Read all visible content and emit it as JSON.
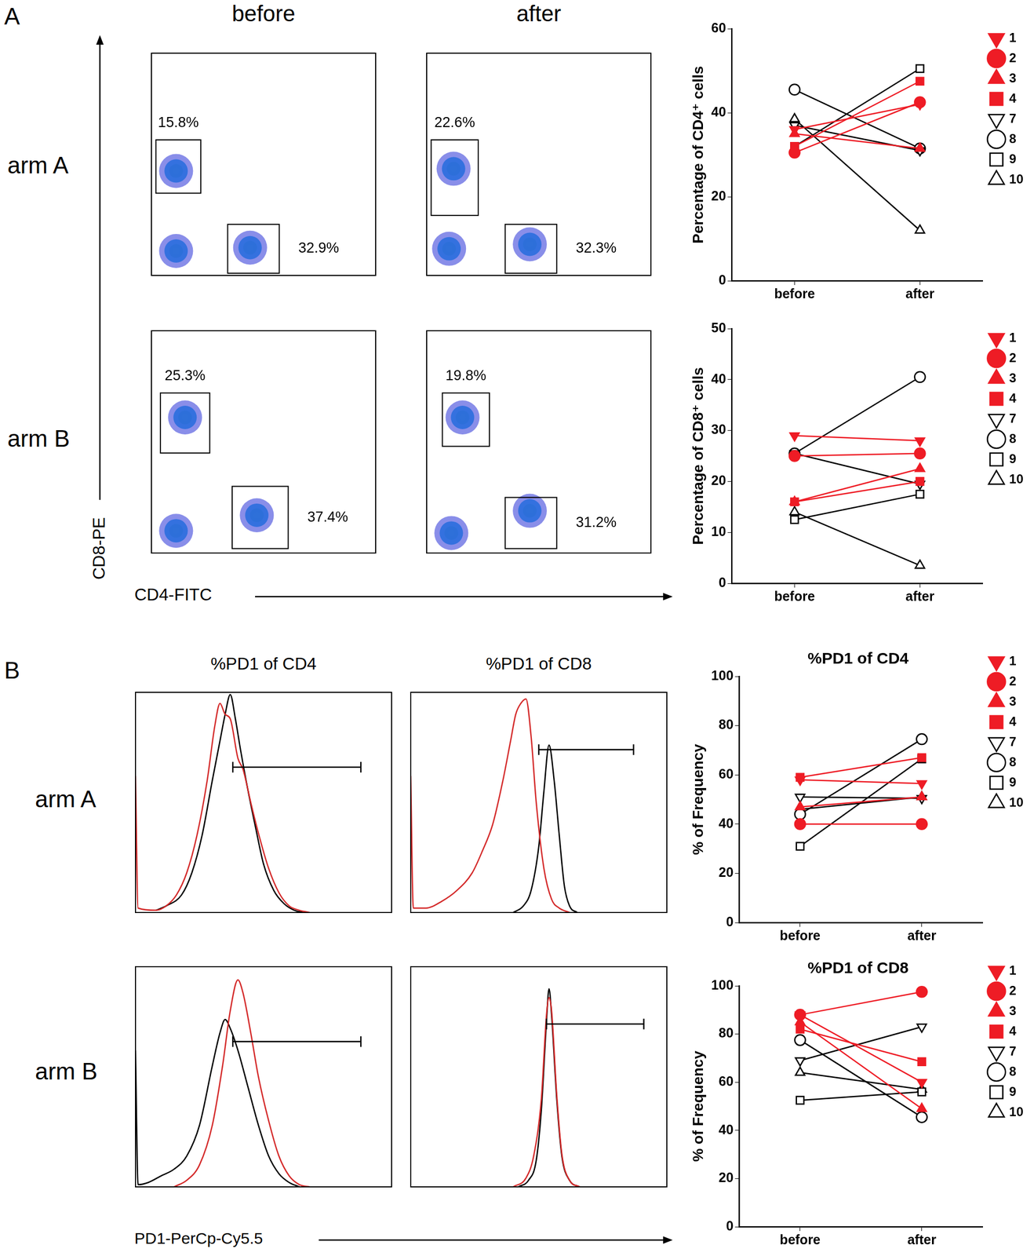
{
  "figure": {
    "panel_labels": [
      "A",
      "B"
    ],
    "rows_A": [
      "arm A",
      "arm B"
    ],
    "rows_B": [
      "arm A",
      "arm B"
    ],
    "x_label_A": "CD4-FITC",
    "y_label_A": "CD8-PE",
    "x_label_B": "PD1-PerCp-Cy5.5"
  },
  "chart_data": [
    {
      "type": "scatter",
      "title": "before",
      "xlim": [
        0,
        100
      ],
      "ylim": [
        0,
        100
      ],
      "tick_labels": false,
      "x": [
        11,
        44,
        11
      ],
      "values": [
        11,
        12.5,
        47
      ],
      "gates": [
        {
          "x": [
            2,
            22
          ],
          "y": [
            37,
            61
          ],
          "label": "15.8%"
        },
        {
          "x": [
            34,
            57
          ],
          "y": [
            1,
            23
          ],
          "label": "32.9%"
        }
      ]
    },
    {
      "type": "scatter",
      "title": "after",
      "xlim": [
        0,
        100
      ],
      "ylim": [
        0,
        100
      ],
      "tick_labels": false,
      "x": [
        10,
        46,
        12
      ],
      "values": [
        12,
        14,
        48
      ],
      "gates": [
        {
          "x": [
            2,
            23
          ],
          "y": [
            27,
            61
          ],
          "label": "22.6%"
        },
        {
          "x": [
            35,
            58
          ],
          "y": [
            1,
            23
          ],
          "label": "32.3%"
        }
      ]
    },
    {
      "type": "scatter",
      "xlim": [
        0,
        100
      ],
      "ylim": [
        0,
        100
      ],
      "tick_labels": false,
      "x": [
        11,
        47,
        15
      ],
      "values": [
        10,
        17,
        61
      ],
      "gates": [
        {
          "x": [
            4,
            26
          ],
          "y": [
            45,
            72
          ],
          "label": "25.3%"
        },
        {
          "x": [
            36,
            61
          ],
          "y": [
            2,
            30
          ],
          "label": "37.4%"
        }
      ]
    },
    {
      "type": "scatter",
      "xlim": [
        0,
        100
      ],
      "ylim": [
        0,
        100
      ],
      "tick_labels": false,
      "x": [
        11,
        46,
        16
      ],
      "values": [
        9,
        19,
        61
      ],
      "gates": [
        {
          "x": [
            7,
            28
          ],
          "y": [
            48,
            72
          ],
          "label": "19.8%"
        },
        {
          "x": [
            35,
            58
          ],
          "y": [
            2,
            25
          ],
          "label": "31.2%"
        }
      ]
    },
    {
      "type": "line",
      "y_label": "Percentage of CD4⁺ cells",
      "categories": [
        "before",
        "after"
      ],
      "ylim": [
        0,
        60
      ],
      "yticks": [
        0,
        20,
        40,
        60
      ],
      "grid": false,
      "legend": "right",
      "series": [
        {
          "name": "1",
          "color": "#ee1c25",
          "marker": "filled_triangle_down",
          "values": [
            36,
            42
          ]
        },
        {
          "name": "2",
          "color": "#ee1c25",
          "marker": "filled_circle",
          "values": [
            30.5,
            42.5
          ]
        },
        {
          "name": "3",
          "color": "#ee1c25",
          "marker": "filled_triangle",
          "values": [
            35,
            31.5
          ]
        },
        {
          "name": "4",
          "color": "#ee1c25",
          "marker": "filled_square",
          "values": [
            32,
            47.5
          ]
        },
        {
          "name": "7",
          "color": "#000000",
          "marker": "open_triangle_down",
          "values": [
            37,
            31
          ]
        },
        {
          "name": "8",
          "color": "#000000",
          "marker": "open_circle",
          "values": [
            45.5,
            31.5
          ]
        },
        {
          "name": "9",
          "color": "#000000",
          "marker": "open_square",
          "values": [
            32,
            50.5
          ]
        },
        {
          "name": "10",
          "color": "#000000",
          "marker": "open_triangle",
          "values": [
            38.5,
            12
          ]
        }
      ]
    },
    {
      "type": "line",
      "y_label": "Percentage of CD8⁺ cells",
      "categories": [
        "before",
        "after"
      ],
      "ylim": [
        0,
        50
      ],
      "yticks": [
        0,
        10,
        20,
        30,
        40,
        50
      ],
      "grid": false,
      "legend": "right",
      "series": [
        {
          "name": "1",
          "color": "#ee1c25",
          "marker": "filled_triangle_down",
          "values": [
            29,
            28
          ]
        },
        {
          "name": "2",
          "color": "#ee1c25",
          "marker": "filled_circle",
          "values": [
            25,
            25.5
          ]
        },
        {
          "name": "3",
          "color": "#ee1c25",
          "marker": "filled_triangle",
          "values": [
            16,
            22.5
          ]
        },
        {
          "name": "4",
          "color": "#ee1c25",
          "marker": "filled_square",
          "values": [
            16,
            20
          ]
        },
        {
          "name": "7",
          "color": "#000000",
          "marker": "open_triangle_down",
          "values": [
            25.5,
            19.5
          ]
        },
        {
          "name": "8",
          "color": "#000000",
          "marker": "open_circle",
          "values": [
            25.5,
            40.5
          ]
        },
        {
          "name": "9",
          "color": "#000000",
          "marker": "open_square",
          "values": [
            12.5,
            17.5
          ]
        },
        {
          "name": "10",
          "color": "#000000",
          "marker": "open_triangle",
          "values": [
            14,
            3.5
          ]
        }
      ]
    },
    {
      "type": "line",
      "title": "%PD1 of CD4",
      "xlim": [
        0,
        100
      ],
      "ylim": [
        0,
        100
      ],
      "tick_labels": false,
      "series": [
        {
          "color": "#d42a2a",
          "x": [
            0,
            1,
            8,
            12,
            16,
            20,
            24,
            28,
            31,
            33,
            35,
            37,
            40,
            42,
            45,
            48,
            52,
            56,
            60,
            64,
            68
          ],
          "values": [
            62,
            2,
            1,
            3,
            8,
            18,
            35,
            60,
            85,
            95,
            90,
            88,
            70,
            65,
            50,
            36,
            20,
            9,
            3,
            1,
            0
          ]
        },
        {
          "color": "#000000",
          "x": [
            8,
            12,
            18,
            22,
            26,
            30,
            33,
            35,
            37,
            39,
            41,
            44,
            47,
            50,
            54,
            58,
            62,
            66
          ],
          "values": [
            1,
            3,
            8,
            18,
            35,
            60,
            78,
            90,
            99,
            88,
            74,
            55,
            38,
            22,
            10,
            4,
            1,
            0
          ]
        }
      ],
      "gate": {
        "x": [
          38,
          88
        ],
        "y": 66
      }
    },
    {
      "type": "line",
      "title": "%PD1 of CD8",
      "xlim": [
        0,
        100
      ],
      "ylim": [
        0,
        100
      ],
      "tick_labels": false,
      "series": [
        {
          "color": "#d42a2a",
          "x": [
            0,
            1,
            6,
            12,
            18,
            24,
            28,
            32,
            36,
            39,
            41,
            43,
            45,
            47,
            49,
            52,
            55,
            58,
            62
          ],
          "values": [
            62,
            2,
            2,
            5,
            10,
            18,
            28,
            40,
            60,
            78,
            90,
            95,
            97,
            80,
            50,
            20,
            6,
            2,
            0
          ]
        },
        {
          "color": "#000000",
          "x": [
            40,
            44,
            47,
            50,
            52,
            54,
            56,
            58,
            60,
            62,
            65
          ],
          "values": [
            0,
            3,
            10,
            30,
            55,
            76,
            60,
            35,
            12,
            3,
            0
          ]
        }
      ],
      "gate": {
        "x": [
          50,
          87
        ],
        "y": 74
      }
    },
    {
      "type": "line",
      "xlim": [
        0,
        100
      ],
      "ylim": [
        0,
        100
      ],
      "tick_labels": false,
      "series": [
        {
          "color": "#d42a2a",
          "x": [
            15,
            20,
            25,
            30,
            34,
            37,
            40,
            42,
            45,
            48,
            52,
            56,
            60,
            64,
            68
          ],
          "values": [
            0,
            3,
            10,
            28,
            55,
            80,
            94,
            88,
            70,
            50,
            30,
            14,
            5,
            1,
            0
          ]
        },
        {
          "color": "#000000",
          "x": [
            0,
            1,
            5,
            10,
            15,
            20,
            25,
            30,
            33,
            35,
            37,
            40,
            44,
            48,
            52,
            56,
            60,
            64
          ],
          "values": [
            62,
            1,
            2,
            5,
            8,
            14,
            28,
            55,
            70,
            76,
            72,
            62,
            45,
            28,
            14,
            6,
            2,
            0
          ]
        }
      ],
      "gate": {
        "x": [
          38,
          88
        ],
        "y": 66
      }
    },
    {
      "type": "line",
      "xlim": [
        0,
        100
      ],
      "ylim": [
        0,
        100
      ],
      "tick_labels": false,
      "series": [
        {
          "color": "#d42a2a",
          "x": [
            40,
            45,
            48,
            51,
            53,
            54,
            55,
            57,
            59,
            62,
            66
          ],
          "values": [
            0,
            4,
            14,
            40,
            78,
            86,
            80,
            42,
            15,
            3,
            0
          ]
        },
        {
          "color": "#000000",
          "x": [
            42,
            46,
            49,
            51,
            53,
            54,
            55,
            57,
            59,
            62,
            66
          ],
          "values": [
            0,
            3,
            12,
            35,
            75,
            90,
            78,
            40,
            14,
            3,
            0
          ]
        }
      ],
      "gate": {
        "x": [
          53,
          91
        ],
        "y": 74
      }
    },
    {
      "type": "line",
      "title": "%PD1 of CD4",
      "y_label": "% of Frequency",
      "categories": [
        "before",
        "after"
      ],
      "ylim": [
        0,
        100
      ],
      "yticks": [
        0,
        20,
        40,
        60,
        80,
        100
      ],
      "grid": false,
      "legend": "right",
      "series": [
        {
          "name": "1",
          "color": "#ee1c25",
          "marker": "filled_triangle_down",
          "values": [
            58,
            56.5
          ]
        },
        {
          "name": "2",
          "color": "#ee1c25",
          "marker": "filled_circle",
          "values": [
            40,
            40
          ]
        },
        {
          "name": "3",
          "color": "#ee1c25",
          "marker": "filled_triangle",
          "values": [
            47,
            51
          ]
        },
        {
          "name": "4",
          "color": "#ee1c25",
          "marker": "filled_square",
          "values": [
            59,
            67
          ]
        },
        {
          "name": "7",
          "color": "#000000",
          "marker": "open_triangle_down",
          "values": [
            51,
            50.5
          ]
        },
        {
          "name": "8",
          "color": "#000000",
          "marker": "open_circle",
          "values": [
            44,
            74.5
          ]
        },
        {
          "name": "9",
          "color": "#000000",
          "marker": "open_square",
          "values": [
            31,
            66.5
          ]
        },
        {
          "name": "10",
          "color": "#000000",
          "marker": "open_triangle",
          "values": [
            46,
            51
          ]
        }
      ]
    },
    {
      "type": "line",
      "title": "%PD1 of CD8",
      "y_label": "% of Frequency",
      "categories": [
        "before",
        "after"
      ],
      "ylim": [
        0,
        100
      ],
      "yticks": [
        0,
        20,
        40,
        60,
        80,
        100
      ],
      "grid": false,
      "legend": "right",
      "series": [
        {
          "name": "1",
          "color": "#ee1c25",
          "marker": "filled_triangle_down",
          "values": [
            88,
            60
          ]
        },
        {
          "name": "2",
          "color": "#ee1c25",
          "marker": "filled_circle",
          "values": [
            88,
            97.5
          ]
        },
        {
          "name": "3",
          "color": "#ee1c25",
          "marker": "filled_triangle",
          "values": [
            85,
            49
          ]
        },
        {
          "name": "4",
          "color": "#ee1c25",
          "marker": "filled_square",
          "values": [
            82,
            68.5
          ]
        },
        {
          "name": "7",
          "color": "#000000",
          "marker": "open_triangle_down",
          "values": [
            69,
            83
          ]
        },
        {
          "name": "8",
          "color": "#000000",
          "marker": "open_circle",
          "values": [
            77.5,
            45.5
          ]
        },
        {
          "name": "9",
          "color": "#000000",
          "marker": "open_square",
          "values": [
            52.5,
            56
          ]
        },
        {
          "name": "10",
          "color": "#000000",
          "marker": "open_triangle",
          "values": [
            64,
            57
          ]
        }
      ]
    }
  ]
}
